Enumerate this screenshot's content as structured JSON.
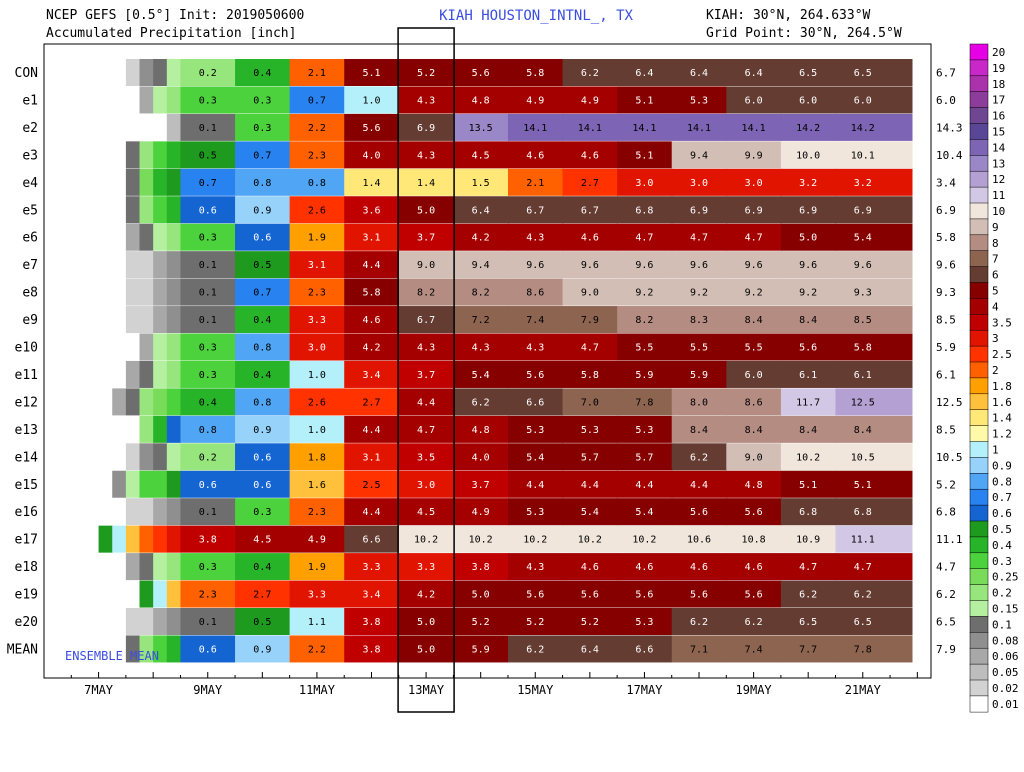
{
  "header": {
    "line1_left": "NCEP GEFS [0.5°] Init: 2019050600",
    "line2_left": "Accumulated Precipitation [inch]",
    "station": "KIAH HOUSTON_INTNL_, TX",
    "line1_right": "KIAH: 30°N, 264.633°W",
    "line2_right": "Grid Point: 30°N, 264.5°W"
  },
  "annotation": "ENSEMBLE MEAN",
  "chart_data": {
    "type": "heatmap",
    "title": "Accumulated Precipitation [inch]",
    "x_tick_labels": [
      "7MAY",
      "9MAY",
      "11MAY",
      "13MAY",
      "15MAY",
      "17MAY",
      "19MAY",
      "21MAY"
    ],
    "x_tick_days": [
      7,
      9,
      11,
      13,
      15,
      17,
      19,
      21
    ],
    "x_range_days": [
      6,
      22.25
    ],
    "highlighted_tick": "13MAY",
    "members": [
      "CON",
      "e1",
      "e2",
      "e3",
      "e4",
      "e5",
      "e6",
      "e7",
      "e8",
      "e9",
      "e10",
      "e11",
      "e12",
      "e13",
      "e14",
      "e15",
      "e16",
      "e17",
      "e18",
      "e19",
      "e20",
      "MEAN"
    ],
    "time_step_hours": 6,
    "cell_starts": [
      [
        7.5,
        7.5,
        7.5,
        8.5,
        8.5,
        8.5,
        8.5,
        8.5,
        8.5
      ],
      [
        7.75,
        7.75,
        7.75,
        7.75,
        7.75,
        7.75,
        7.75,
        7.75,
        7.75
      ],
      [
        8.25,
        8.25,
        8.25,
        8.25,
        8.25,
        8.25,
        8.25,
        8.25,
        8.25
      ],
      [
        7.5,
        7.5,
        7.5,
        7.5,
        7.5,
        7.5,
        7.5,
        7.5,
        7.5
      ],
      [
        7.5,
        7.5,
        7.5,
        7.5,
        7.5,
        7.5,
        7.5,
        7.5,
        7.5
      ],
      [
        7.5,
        7.5,
        7.5,
        7.5,
        7.5,
        7.5,
        7.5,
        7.5,
        7.5
      ],
      [
        7.5,
        7.5,
        7.5,
        7.5,
        7.5,
        7.5,
        7.5,
        7.5,
        7.5
      ],
      [
        7.5,
        7.5,
        7.5,
        7.5,
        7.5,
        7.5,
        7.5,
        7.5,
        7.5
      ],
      [
        7.5,
        7.5,
        7.5,
        7.5,
        7.5,
        7.5,
        7.5,
        7.5,
        7.5
      ],
      [
        7.5,
        7.5,
        7.5,
        7.5,
        7.5,
        7.5,
        7.5,
        7.5,
        7.5
      ],
      [
        7.75,
        7.75,
        7.75,
        7.75,
        7.75,
        7.75,
        7.75,
        7.75,
        7.75
      ],
      [
        7.5,
        7.5,
        7.5,
        7.5,
        7.5,
        7.5,
        7.5,
        7.5,
        7.5
      ],
      [
        7.25,
        7.25,
        7.25,
        7.25,
        7.25,
        7.25,
        7.25,
        7.25,
        7.25
      ],
      [
        7.75,
        7.75,
        7.75,
        7.75,
        7.75,
        7.75,
        7.75,
        7.75,
        7.75
      ],
      [
        7.5,
        7.5,
        7.5,
        7.5,
        7.5,
        7.5,
        7.5,
        7.5,
        7.5
      ],
      [
        7.25,
        7.25,
        7.25,
        7.25,
        7.25,
        7.25,
        7.25,
        7.25,
        7.25
      ],
      [
        7.5,
        7.5,
        7.5,
        7.5,
        7.5,
        7.5,
        7.5,
        7.5,
        7.5
      ],
      [
        7,
        7,
        7,
        7,
        7,
        7,
        7,
        7,
        7
      ],
      [
        7.5,
        7.5,
        7.5,
        7.5,
        7.5,
        7.5,
        7.5,
        7.5,
        7.5
      ],
      [
        7.75,
        7.75,
        7.75,
        7.75,
        7.75,
        7.75,
        7.75,
        7.75,
        7.75
      ],
      [
        7.5,
        7.5,
        7.5,
        7.5,
        7.5,
        7.5,
        7.5,
        7.5,
        7.5
      ],
      [
        7.5,
        7.5,
        7.5,
        7.5,
        7.5,
        7.5,
        7.5,
        7.5,
        7.5
      ]
    ],
    "label_days": [
      8.5,
      9.5,
      10.5,
      11.5,
      12.5,
      13.5,
      14.5,
      15.5,
      16.5,
      17.5,
      18.5,
      19.5,
      20.5,
      21.5
    ],
    "values": [
      [
        0.2,
        0.4,
        2.1,
        5.1,
        5.2,
        5.6,
        5.8,
        6.2,
        6.4,
        6.4,
        6.4,
        6.5,
        6.5
      ],
      [
        0.3,
        0.3,
        0.7,
        1.0,
        4.3,
        4.8,
        4.9,
        4.9,
        5.1,
        5.3,
        6.0,
        6.0,
        6.0
      ],
      [
        0.1,
        0.3,
        2.2,
        5.6,
        6.9,
        13.5,
        14.1,
        14.1,
        14.1,
        14.1,
        14.1,
        14.2,
        14.2
      ],
      [
        0.5,
        0.7,
        2.3,
        4.0,
        4.3,
        4.5,
        4.6,
        4.6,
        5.1,
        9.4,
        9.9,
        10.0,
        10.1
      ],
      [
        0.7,
        0.8,
        0.8,
        1.4,
        1.4,
        1.5,
        2.1,
        2.7,
        3.0,
        3.0,
        3.0,
        3.2,
        3.2
      ],
      [
        0.6,
        0.9,
        2.6,
        3.6,
        5.0,
        6.4,
        6.7,
        6.7,
        6.8,
        6.9,
        6.9,
        6.9,
        6.9
      ],
      [
        0.3,
        0.6,
        1.9,
        3.1,
        3.7,
        4.2,
        4.3,
        4.6,
        4.7,
        4.7,
        4.7,
        5.0,
        5.4
      ],
      [
        0.1,
        0.5,
        3.1,
        4.4,
        9.0,
        9.4,
        9.6,
        9.6,
        9.6,
        9.6,
        9.6,
        9.6,
        9.6
      ],
      [
        0.1,
        0.7,
        2.3,
        5.8,
        8.2,
        8.2,
        8.6,
        9.0,
        9.2,
        9.2,
        9.2,
        9.2,
        9.3
      ],
      [
        0.1,
        0.4,
        3.3,
        4.6,
        6.7,
        7.2,
        7.4,
        7.9,
        8.2,
        8.3,
        8.4,
        8.4,
        8.5
      ],
      [
        0.3,
        0.8,
        3.0,
        4.2,
        4.3,
        4.3,
        4.3,
        4.7,
        5.5,
        5.5,
        5.5,
        5.6,
        5.8
      ],
      [
        0.3,
        0.4,
        1.0,
        3.4,
        3.7,
        5.4,
        5.6,
        5.8,
        5.9,
        5.9,
        6.0,
        6.1,
        6.1
      ],
      [
        0.4,
        0.8,
        2.6,
        2.7,
        4.4,
        6.2,
        6.6,
        7.0,
        7.8,
        8.0,
        8.6,
        11.7,
        12.5
      ],
      [
        0.8,
        0.9,
        1.0,
        4.4,
        4.7,
        4.8,
        5.3,
        5.3,
        5.3,
        8.4,
        8.4,
        8.4,
        8.4
      ],
      [
        0.2,
        0.6,
        1.8,
        3.1,
        3.5,
        4.0,
        5.4,
        5.7,
        5.7,
        6.2,
        9.0,
        10.2,
        10.5
      ],
      [
        0.6,
        0.6,
        1.6,
        2.5,
        3.0,
        3.7,
        4.4,
        4.4,
        4.4,
        4.4,
        4.8,
        5.1,
        5.1
      ],
      [
        0.1,
        0.3,
        2.3,
        4.4,
        4.5,
        4.9,
        5.3,
        5.4,
        5.4,
        5.6,
        5.6,
        6.8,
        6.8
      ],
      [
        3.8,
        4.5,
        4.9,
        6.6,
        10.2,
        10.2,
        10.2,
        10.2,
        10.2,
        10.6,
        10.8,
        10.9,
        11.1
      ],
      [
        0.3,
        0.4,
        1.9,
        3.3,
        3.3,
        3.8,
        4.3,
        4.6,
        4.6,
        4.6,
        4.6,
        4.7,
        4.7
      ],
      [
        2.3,
        2.7,
        3.3,
        3.4,
        4.2,
        5.0,
        5.6,
        5.6,
        5.6,
        5.6,
        5.6,
        6.2,
        6.2
      ],
      [
        0.1,
        0.5,
        1.1,
        3.8,
        5.0,
        5.2,
        5.2,
        5.2,
        5.3,
        6.2,
        6.2,
        6.5,
        6.5
      ],
      [
        0.6,
        0.9,
        2.2,
        3.8,
        5.0,
        5.9,
        6.2,
        6.4,
        6.6,
        7.1,
        7.4,
        7.7,
        7.8
      ]
    ],
    "label_start_day": [
      8.5,
      8.5,
      8.5,
      8.5,
      8.5,
      8.5,
      8.5,
      8.5,
      8.5,
      8.5,
      8.5,
      8.5,
      8.5,
      8.5,
      8.5,
      8.5,
      8.5,
      8.5,
      8.5,
      8.5,
      8.5,
      8.5
    ],
    "final_totals": [
      6.7,
      6.0,
      14.3,
      10.4,
      3.4,
      6.9,
      5.8,
      9.6,
      9.3,
      8.5,
      5.9,
      6.1,
      12.5,
      8.5,
      10.5,
      5.2,
      6.8,
      11.1,
      4.7,
      6.2,
      6.5,
      7.9
    ],
    "final_totals_labels": [
      "6.7",
      "6.0",
      "14.3",
      "10.4",
      "3.4",
      "6.9",
      "5.8",
      "9.6",
      "9.3",
      "8.5",
      "5.9",
      "6.1",
      "12.5",
      "8.5",
      "10.5",
      "5.2",
      "6.8",
      "11.1",
      "4.7",
      "6.2",
      "6.5",
      "7.9"
    ],
    "color_scale": {
      "labels": [
        "20",
        "19",
        "18",
        "17",
        "16",
        "15",
        "14",
        "13",
        "12",
        "11",
        "10",
        "9",
        "8",
        "7",
        "6",
        "5",
        "4",
        "3.5",
        "3",
        "2.5",
        "2",
        "1.8",
        "1.6",
        "1.4",
        "1.2",
        "1",
        "0.9",
        "0.8",
        "0.7",
        "0.6",
        "0.5",
        "0.4",
        "0.3",
        "0.25",
        "0.2",
        "0.15",
        "0.1",
        "0.08",
        "0.06",
        "0.05",
        "0.02",
        "0.01"
      ],
      "thresholds": [
        0.01,
        0.02,
        0.05,
        0.06,
        0.08,
        0.1,
        0.15,
        0.2,
        0.25,
        0.3,
        0.4,
        0.5,
        0.6,
        0.7,
        0.8,
        0.9,
        1,
        1.2,
        1.4,
        1.6,
        1.8,
        2,
        2.5,
        3,
        3.5,
        4,
        5,
        6,
        7,
        8,
        9,
        10,
        11,
        12,
        13,
        14,
        15,
        16,
        17,
        18,
        19,
        20
      ],
      "colors": [
        "#ffffff",
        "#d2d2d2",
        "#bdbdbd",
        "#a8a8a8",
        "#8f8f8f",
        "#6e6e6e",
        "#b4f0a0",
        "#96e67d",
        "#78dc5a",
        "#4bd23c",
        "#28b428",
        "#1e9b1e",
        "#1464d2",
        "#2882f0",
        "#50a5f5",
        "#96d2fa",
        "#b4f0fa",
        "#fffaaa",
        "#ffe878",
        "#ffc03c",
        "#ffa000",
        "#ff6000",
        "#ff3200",
        "#e11400",
        "#c00000",
        "#a50000",
        "#870000",
        "#643c32",
        "#8c6450",
        "#b48c82",
        "#d2beb4",
        "#f0e6dc",
        "#d2c8e6",
        "#b4a0d2",
        "#9a87c8",
        "#7d64b4",
        "#5a4696",
        "#6e4691",
        "#8c3c9b",
        "#aa32aa",
        "#c828c8",
        "#e600e6"
      ]
    }
  }
}
